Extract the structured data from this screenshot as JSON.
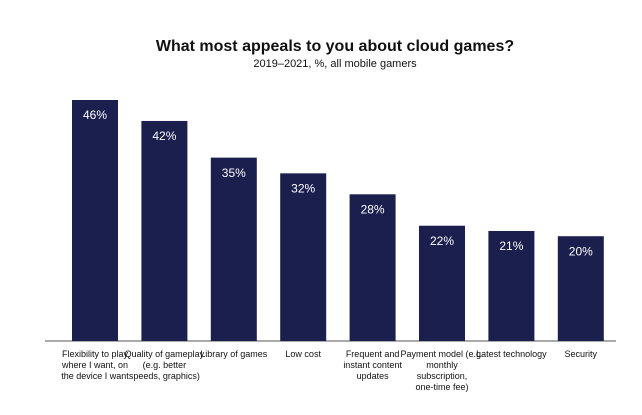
{
  "chart_data": {
    "type": "bar",
    "title": "What most appeals to you about cloud games?",
    "subtitle": "2019–2021, %, all mobile gamers",
    "categories": [
      "Flexibility to play where I want, on the device I want",
      "Quality of gameplay (e.g. better speeds, graphics)",
      "Library of games",
      "Low cost",
      "Frequent and instant content updates",
      "Payment model (e.g. monthly subscription, one-time fee)",
      "Latest technology",
      "Security"
    ],
    "values": [
      46,
      42,
      35,
      32,
      28,
      22,
      21,
      20
    ],
    "value_labels": [
      "46%",
      "42%",
      "35%",
      "32%",
      "28%",
      "22%",
      "21%",
      "20%"
    ],
    "color": "#1b1f4d"
  }
}
